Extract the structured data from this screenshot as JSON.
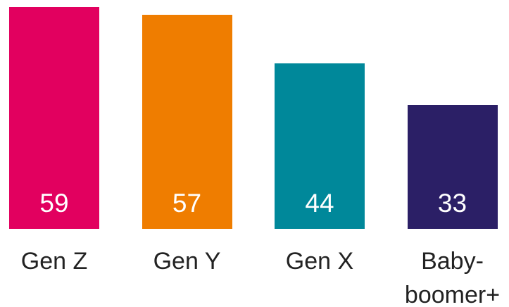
{
  "chart_data": {
    "type": "bar",
    "categories": [
      "Gen Z",
      "Gen Y",
      "Gen X",
      "Baby-boomer+"
    ],
    "values": [
      59,
      57,
      44,
      33
    ],
    "colors": [
      "#e2005f",
      "#ef7d00",
      "#00889a",
      "#2b1f66"
    ]
  }
}
